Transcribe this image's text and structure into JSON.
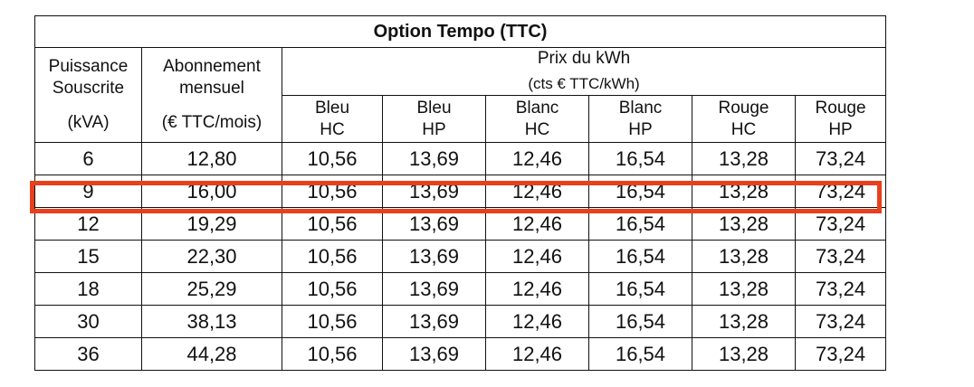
{
  "title": "Option Tempo (TTC)",
  "headers": {
    "puissance_line1": "Puissance",
    "puissance_line2": "Souscrite",
    "puissance_unit": "(kVA)",
    "abonnement_line1": "Abonnement",
    "abonnement_line2": "mensuel",
    "abonnement_unit": "(€ TTC/mois)",
    "prix_label": "Prix du kWh",
    "prix_unit": "(cts € TTC/kWh)",
    "columns": [
      {
        "l1": "Bleu",
        "l2": "HC"
      },
      {
        "l1": "Bleu",
        "l2": "HP"
      },
      {
        "l1": "Blanc",
        "l2": "HC"
      },
      {
        "l1": "Blanc",
        "l2": "HP"
      },
      {
        "l1": "Rouge",
        "l2": "HC"
      },
      {
        "l1": "Rouge",
        "l2": "HP"
      }
    ]
  },
  "rows": [
    {
      "kva": "6",
      "abonnement": "12,80",
      "prices": [
        "10,56",
        "13,69",
        "12,46",
        "16,54",
        "13,28",
        "73,24"
      ]
    },
    {
      "kva": "9",
      "abonnement": "16,00",
      "prices": [
        "10,56",
        "13,69",
        "12,46",
        "16,54",
        "13,28",
        "73,24"
      ]
    },
    {
      "kva": "12",
      "abonnement": "19,29",
      "prices": [
        "10,56",
        "13,69",
        "12,46",
        "16,54",
        "13,28",
        "73,24"
      ]
    },
    {
      "kva": "15",
      "abonnement": "22,30",
      "prices": [
        "10,56",
        "13,69",
        "12,46",
        "16,54",
        "13,28",
        "73,24"
      ]
    },
    {
      "kva": "18",
      "abonnement": "25,29",
      "prices": [
        "10,56",
        "13,69",
        "12,46",
        "16,54",
        "13,28",
        "73,24"
      ]
    },
    {
      "kva": "30",
      "abonnement": "38,13",
      "prices": [
        "10,56",
        "13,69",
        "12,46",
        "16,54",
        "13,28",
        "73,24"
      ]
    },
    {
      "kva": "36",
      "abonnement": "44,28",
      "prices": [
        "10,56",
        "13,69",
        "12,46",
        "16,54",
        "13,28",
        "73,24"
      ]
    }
  ],
  "highlighted_row_index": 1,
  "highlight_color": "#e8401c"
}
